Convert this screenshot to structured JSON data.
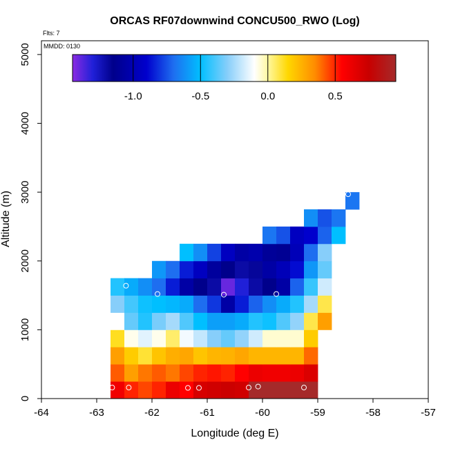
{
  "chart_data": {
    "type": "heatmap",
    "title": "ORCAS RF07downwind CONCU500_RWO (Log)",
    "flights_note": "Flts: 7",
    "date_note": "MMDD: 0130",
    "xlabel": "Longitude (deg E)",
    "ylabel": "Altitude (m)",
    "xlim": [
      -64,
      -57
    ],
    "ylim": [
      0,
      5200
    ],
    "x_ticks": [
      -64,
      -63,
      -62,
      -61,
      -60,
      -59,
      -58,
      -57
    ],
    "x_tick_labels": [
      "-64",
      "-63",
      "-62",
      "-61",
      "-60",
      "-59",
      "-58",
      "-57"
    ],
    "y_ticks": [
      0,
      1000,
      2000,
      3000,
      4000,
      5000
    ],
    "y_tick_labels": [
      "0",
      "1000",
      "2000",
      "3000",
      "4000",
      "5000"
    ],
    "cell_width_deg": 0.25,
    "cell_height_m": 250,
    "colorbar": {
      "range": [
        -1.45,
        0.95
      ],
      "ticks": [
        -1.0,
        -0.5,
        0.0,
        0.5
      ],
      "tick_labels": [
        "-1.0",
        "-0.5",
        "0.0",
        "0.5"
      ],
      "stops": [
        {
          "v": -1.45,
          "c": "#8a2be2"
        },
        {
          "v": -1.3,
          "c": "#2020d8"
        },
        {
          "v": -1.15,
          "c": "#00008b"
        },
        {
          "v": -0.9,
          "c": "#0000cd"
        },
        {
          "v": -0.7,
          "c": "#1e6ef0"
        },
        {
          "v": -0.5,
          "c": "#00bfff"
        },
        {
          "v": -0.3,
          "c": "#87cefa"
        },
        {
          "v": -0.1,
          "c": "#ffffff"
        },
        {
          "v": 0.0,
          "c": "#fff8a0"
        },
        {
          "v": 0.15,
          "c": "#ffd700"
        },
        {
          "v": 0.35,
          "c": "#ff8c00"
        },
        {
          "v": 0.55,
          "c": "#ff0000"
        },
        {
          "v": 0.75,
          "c": "#c80000"
        },
        {
          "v": 0.95,
          "c": "#a52a2a"
        }
      ]
    },
    "cells": [
      {
        "lon": -62.75,
        "alt": 0,
        "v": 0.6
      },
      {
        "lon": -62.5,
        "alt": 0,
        "v": 0.5
      },
      {
        "lon": -62.25,
        "alt": 0,
        "v": 0.45
      },
      {
        "lon": -62.0,
        "alt": 0,
        "v": 0.5
      },
      {
        "lon": -61.75,
        "alt": 0,
        "v": 0.62
      },
      {
        "lon": -61.5,
        "alt": 0,
        "v": 0.55
      },
      {
        "lon": -61.25,
        "alt": 0,
        "v": 0.7
      },
      {
        "lon": -61.0,
        "alt": 0,
        "v": 0.72
      },
      {
        "lon": -60.75,
        "alt": 0,
        "v": 0.74
      },
      {
        "lon": -60.5,
        "alt": 0,
        "v": 0.72
      },
      {
        "lon": -60.25,
        "alt": 0,
        "v": 0.95
      },
      {
        "lon": -60.0,
        "alt": 0,
        "v": 0.95
      },
      {
        "lon": -59.75,
        "alt": 0,
        "v": 0.95
      },
      {
        "lon": -59.5,
        "alt": 0,
        "v": 0.95
      },
      {
        "lon": -59.25,
        "alt": 0,
        "v": 0.95
      },
      {
        "lon": -62.75,
        "alt": 250,
        "v": 0.42
      },
      {
        "lon": -62.5,
        "alt": 250,
        "v": 0.3
      },
      {
        "lon": -62.25,
        "alt": 250,
        "v": 0.38
      },
      {
        "lon": -62.0,
        "alt": 250,
        "v": 0.42
      },
      {
        "lon": -61.75,
        "alt": 250,
        "v": 0.38
      },
      {
        "lon": -61.5,
        "alt": 250,
        "v": 0.45
      },
      {
        "lon": -61.25,
        "alt": 250,
        "v": 0.5
      },
      {
        "lon": -61.0,
        "alt": 250,
        "v": 0.52
      },
      {
        "lon": -60.75,
        "alt": 250,
        "v": 0.5
      },
      {
        "lon": -60.5,
        "alt": 250,
        "v": 0.55
      },
      {
        "lon": -60.25,
        "alt": 250,
        "v": 0.62
      },
      {
        "lon": -60.0,
        "alt": 250,
        "v": 0.6
      },
      {
        "lon": -59.75,
        "alt": 250,
        "v": 0.6
      },
      {
        "lon": -59.5,
        "alt": 250,
        "v": 0.62
      },
      {
        "lon": -59.25,
        "alt": 250,
        "v": 0.68
      },
      {
        "lon": -62.75,
        "alt": 500,
        "v": 0.3
      },
      {
        "lon": -62.5,
        "alt": 500,
        "v": 0.18
      },
      {
        "lon": -62.25,
        "alt": 500,
        "v": 0.1
      },
      {
        "lon": -62.0,
        "alt": 500,
        "v": 0.2
      },
      {
        "lon": -61.75,
        "alt": 500,
        "v": 0.26
      },
      {
        "lon": -61.5,
        "alt": 500,
        "v": 0.28
      },
      {
        "lon": -61.25,
        "alt": 500,
        "v": 0.2
      },
      {
        "lon": -61.0,
        "alt": 500,
        "v": 0.24
      },
      {
        "lon": -60.75,
        "alt": 500,
        "v": 0.25
      },
      {
        "lon": -60.5,
        "alt": 500,
        "v": 0.28
      },
      {
        "lon": -60.25,
        "alt": 500,
        "v": 0.24
      },
      {
        "lon": -60.0,
        "alt": 500,
        "v": 0.24
      },
      {
        "lon": -59.75,
        "alt": 500,
        "v": 0.24
      },
      {
        "lon": -59.5,
        "alt": 500,
        "v": 0.24
      },
      {
        "lon": -59.25,
        "alt": 500,
        "v": 0.4
      },
      {
        "lon": -62.75,
        "alt": 750,
        "v": 0.12
      },
      {
        "lon": -62.5,
        "alt": 750,
        "v": -0.08
      },
      {
        "lon": -62.25,
        "alt": 750,
        "v": -0.15
      },
      {
        "lon": -62.0,
        "alt": 750,
        "v": -0.08
      },
      {
        "lon": -61.75,
        "alt": 750,
        "v": 0.05
      },
      {
        "lon": -61.5,
        "alt": 750,
        "v": -0.12
      },
      {
        "lon": -61.25,
        "alt": 750,
        "v": -0.2
      },
      {
        "lon": -61.0,
        "alt": 750,
        "v": -0.3
      },
      {
        "lon": -60.75,
        "alt": 750,
        "v": -0.35
      },
      {
        "lon": -60.5,
        "alt": 750,
        "v": -0.28
      },
      {
        "lon": -60.25,
        "alt": 750,
        "v": -0.18
      },
      {
        "lon": -60.0,
        "alt": 750,
        "v": -0.05
      },
      {
        "lon": -59.75,
        "alt": 750,
        "v": -0.05
      },
      {
        "lon": -59.5,
        "alt": 750,
        "v": -0.05
      },
      {
        "lon": -59.25,
        "alt": 750,
        "v": 0.18
      },
      {
        "lon": -62.75,
        "alt": 1000,
        "v": -0.1
      },
      {
        "lon": -62.5,
        "alt": 1000,
        "v": -0.35
      },
      {
        "lon": -62.25,
        "alt": 1000,
        "v": -0.45
      },
      {
        "lon": -62.0,
        "alt": 1000,
        "v": -0.32
      },
      {
        "lon": -61.75,
        "alt": 1000,
        "v": -0.25
      },
      {
        "lon": -61.5,
        "alt": 1000,
        "v": -0.38
      },
      {
        "lon": -61.25,
        "alt": 1000,
        "v": -0.5
      },
      {
        "lon": -61.0,
        "alt": 1000,
        "v": -0.58
      },
      {
        "lon": -60.75,
        "alt": 1000,
        "v": -0.58
      },
      {
        "lon": -60.5,
        "alt": 1000,
        "v": -0.55
      },
      {
        "lon": -60.25,
        "alt": 1000,
        "v": -0.45
      },
      {
        "lon": -60.0,
        "alt": 1000,
        "v": -0.48
      },
      {
        "lon": -59.75,
        "alt": 1000,
        "v": -0.38
      },
      {
        "lon": -59.5,
        "alt": 1000,
        "v": -0.28
      },
      {
        "lon": -59.25,
        "alt": 1000,
        "v": 0.08
      },
      {
        "lon": -59.0,
        "alt": 1000,
        "v": 0.3
      },
      {
        "lon": -62.75,
        "alt": 1250,
        "v": -0.3
      },
      {
        "lon": -62.5,
        "alt": 1250,
        "v": -0.4
      },
      {
        "lon": -62.25,
        "alt": 1250,
        "v": -0.48
      },
      {
        "lon": -62.0,
        "alt": 1250,
        "v": -0.5
      },
      {
        "lon": -61.75,
        "alt": 1250,
        "v": -0.52
      },
      {
        "lon": -61.5,
        "alt": 1250,
        "v": -0.55
      },
      {
        "lon": -61.25,
        "alt": 1250,
        "v": -0.7
      },
      {
        "lon": -61.0,
        "alt": 1250,
        "v": -0.8
      },
      {
        "lon": -60.75,
        "alt": 1250,
        "v": -1.05
      },
      {
        "lon": -60.5,
        "alt": 1250,
        "v": -0.85
      },
      {
        "lon": -60.25,
        "alt": 1250,
        "v": -0.72
      },
      {
        "lon": -60.0,
        "alt": 1250,
        "v": -0.62
      },
      {
        "lon": -59.75,
        "alt": 1250,
        "v": -0.55
      },
      {
        "lon": -59.5,
        "alt": 1250,
        "v": -0.45
      },
      {
        "lon": -59.25,
        "alt": 1250,
        "v": -0.25
      },
      {
        "lon": -59.0,
        "alt": 1250,
        "v": 0.08
      },
      {
        "lon": -62.75,
        "alt": 1500,
        "v": -0.45
      },
      {
        "lon": -62.5,
        "alt": 1500,
        "v": -0.55
      },
      {
        "lon": -62.25,
        "alt": 1500,
        "v": -0.62
      },
      {
        "lon": -62.0,
        "alt": 1500,
        "v": -0.7
      },
      {
        "lon": -61.75,
        "alt": 1500,
        "v": -0.85
      },
      {
        "lon": -61.5,
        "alt": 1500,
        "v": -1.05
      },
      {
        "lon": -61.25,
        "alt": 1500,
        "v": -1.15
      },
      {
        "lon": -61.0,
        "alt": 1500,
        "v": -1.2
      },
      {
        "lon": -60.75,
        "alt": 1500,
        "v": -1.4
      },
      {
        "lon": -60.5,
        "alt": 1500,
        "v": -1.3
      },
      {
        "lon": -60.25,
        "alt": 1500,
        "v": -1.2
      },
      {
        "lon": -60.0,
        "alt": 1500,
        "v": -1.15
      },
      {
        "lon": -59.75,
        "alt": 1500,
        "v": -1.05
      },
      {
        "lon": -59.5,
        "alt": 1500,
        "v": -0.72
      },
      {
        "lon": -59.25,
        "alt": 1500,
        "v": -0.42
      },
      {
        "lon": -59.0,
        "alt": 1500,
        "v": -0.18
      },
      {
        "lon": -62.0,
        "alt": 1750,
        "v": -0.6
      },
      {
        "lon": -61.75,
        "alt": 1750,
        "v": -0.7
      },
      {
        "lon": -61.5,
        "alt": 1750,
        "v": -0.85
      },
      {
        "lon": -61.25,
        "alt": 1750,
        "v": -0.95
      },
      {
        "lon": -61.0,
        "alt": 1750,
        "v": -1.08
      },
      {
        "lon": -60.75,
        "alt": 1750,
        "v": -1.15
      },
      {
        "lon": -60.5,
        "alt": 1750,
        "v": -1.2
      },
      {
        "lon": -60.25,
        "alt": 1750,
        "v": -1.18
      },
      {
        "lon": -60.0,
        "alt": 1750,
        "v": -1.05
      },
      {
        "lon": -59.75,
        "alt": 1750,
        "v": -0.98
      },
      {
        "lon": -59.5,
        "alt": 1750,
        "v": -0.88
      },
      {
        "lon": -59.25,
        "alt": 1750,
        "v": -0.6
      },
      {
        "lon": -59.0,
        "alt": 1750,
        "v": -0.35
      },
      {
        "lon": -61.5,
        "alt": 2000,
        "v": -0.5
      },
      {
        "lon": -61.25,
        "alt": 2000,
        "v": -0.62
      },
      {
        "lon": -61.0,
        "alt": 2000,
        "v": -0.78
      },
      {
        "lon": -60.75,
        "alt": 2000,
        "v": -0.95
      },
      {
        "lon": -60.5,
        "alt": 2000,
        "v": -1.05
      },
      {
        "lon": -60.25,
        "alt": 2000,
        "v": -1.02
      },
      {
        "lon": -60.0,
        "alt": 2000,
        "v": -1.1
      },
      {
        "lon": -59.75,
        "alt": 2000,
        "v": -1.12
      },
      {
        "lon": -59.5,
        "alt": 2000,
        "v": -0.98
      },
      {
        "lon": -59.25,
        "alt": 2000,
        "v": -0.7
      },
      {
        "lon": -59.0,
        "alt": 2000,
        "v": -0.3
      },
      {
        "lon": -60.0,
        "alt": 2250,
        "v": -0.68
      },
      {
        "lon": -59.75,
        "alt": 2250,
        "v": -0.75
      },
      {
        "lon": -59.5,
        "alt": 2250,
        "v": -0.95
      },
      {
        "lon": -59.25,
        "alt": 2250,
        "v": -0.9
      },
      {
        "lon": -59.0,
        "alt": 2250,
        "v": -0.72
      },
      {
        "lon": -58.75,
        "alt": 2250,
        "v": -0.5
      },
      {
        "lon": -59.25,
        "alt": 2500,
        "v": -0.62
      },
      {
        "lon": -59.0,
        "alt": 2500,
        "v": -0.75
      },
      {
        "lon": -58.75,
        "alt": 2500,
        "v": -0.68
      },
      {
        "lon": -58.5,
        "alt": 2750,
        "v": -0.68
      }
    ],
    "flight_markers": [
      {
        "lon": -62.47,
        "alt": 1640
      },
      {
        "lon": -61.9,
        "alt": 1520
      },
      {
        "lon": -60.7,
        "alt": 1510
      },
      {
        "lon": -59.75,
        "alt": 1520
      },
      {
        "lon": -58.45,
        "alt": 2970
      },
      {
        "lon": -62.72,
        "alt": 160
      },
      {
        "lon": -62.42,
        "alt": 160
      },
      {
        "lon": -61.35,
        "alt": 155
      },
      {
        "lon": -61.15,
        "alt": 155
      },
      {
        "lon": -60.25,
        "alt": 160
      },
      {
        "lon": -60.08,
        "alt": 175
      },
      {
        "lon": -59.25,
        "alt": 160
      }
    ]
  }
}
